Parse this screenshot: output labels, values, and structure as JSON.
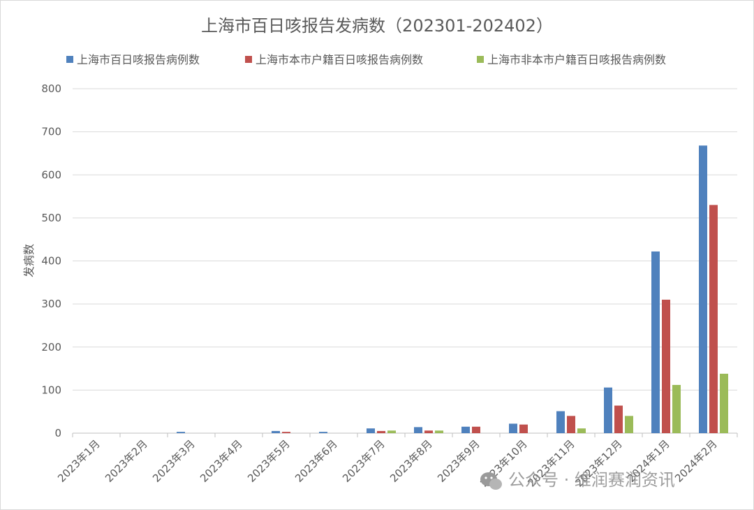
{
  "chart_data": {
    "type": "bar",
    "title": "上海市百日咳报告发病数（202301-202402）",
    "xlabel": "",
    "ylabel": "发病数",
    "ylim": [
      0,
      800
    ],
    "yticks": [
      0,
      100,
      200,
      300,
      400,
      500,
      600,
      700,
      800
    ],
    "grid": true,
    "legend_position": "top",
    "categories": [
      "2023年1月",
      "2023年2月",
      "2023年3月",
      "2023年4月",
      "2023年5月",
      "2023年6月",
      "2023年7月",
      "2023年8月",
      "2023年9月",
      "2023年10月",
      "2023年11月",
      "2023年12月",
      "2024年1月",
      "2024年2月"
    ],
    "series": [
      {
        "name": "上海市百日咳报告病例数",
        "color": "#4f81bd",
        "values": [
          0,
          0,
          3,
          0,
          5,
          3,
          11,
          14,
          15,
          22,
          51,
          106,
          422,
          668
        ]
      },
      {
        "name": "上海市本市户籍百日咳报告病例数",
        "color": "#c0504d",
        "values": [
          0,
          0,
          0,
          0,
          3,
          0,
          5,
          6,
          15,
          20,
          40,
          64,
          310,
          530
        ]
      },
      {
        "name": "上海市非本市户籍百日咳报告病例数",
        "color": "#9bbb59",
        "values": [
          0,
          0,
          0,
          0,
          0,
          0,
          6,
          6,
          0,
          0,
          11,
          40,
          112,
          138
        ]
      }
    ]
  },
  "watermark": {
    "icon": "wechat-icon",
    "text": "公众号 · 维润赛润资讯"
  }
}
